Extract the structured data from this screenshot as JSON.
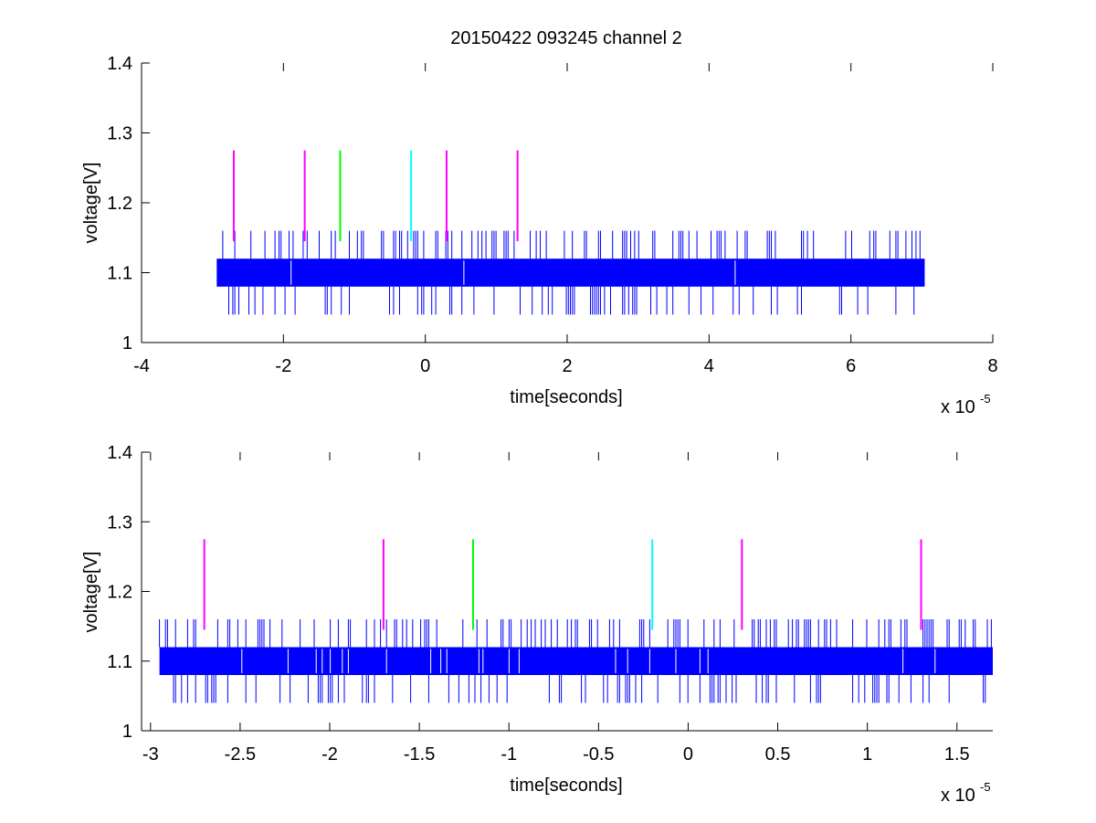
{
  "figure": {
    "background": "#ffffff",
    "signal_color": "#0000ff",
    "marker_colors": {
      "magenta": "#ff00ff",
      "green": "#00ff00",
      "cyan": "#00ffff"
    }
  },
  "chart_data": [
    {
      "type": "line",
      "title": "20150422 093245 channel 2",
      "xlabel": "time[seconds]",
      "ylabel": "voltage[V]",
      "x_exponent_label": "x 10",
      "x_exponent_power": "-5",
      "xlim": [
        -4,
        8
      ],
      "ylim": [
        1,
        1.4
      ],
      "x_ticks": [
        -4,
        -2,
        0,
        2,
        4,
        6,
        8
      ],
      "x_tick_labels": [
        "-4",
        "-2",
        "0",
        "2",
        "4",
        "6",
        "8"
      ],
      "y_ticks": [
        1,
        1.1,
        1.2,
        1.3,
        1.4
      ],
      "y_tick_labels": [
        "1",
        "1.1",
        "1.2",
        "1.3",
        "1.4"
      ],
      "grid": false,
      "signal": {
        "x_range": [
          -2.94,
          7.04
        ],
        "band": [
          1.08,
          1.12
        ],
        "spike_levels": [
          1.04,
          1.16
        ],
        "color": "#0000ff"
      },
      "markers": [
        {
          "x": -2.7,
          "ymin": 1.145,
          "ymax": 1.275,
          "color": "magenta"
        },
        {
          "x": -1.7,
          "ymin": 1.145,
          "ymax": 1.275,
          "color": "magenta"
        },
        {
          "x": -1.2,
          "ymin": 1.145,
          "ymax": 1.275,
          "color": "green"
        },
        {
          "x": -0.2,
          "ymin": 1.145,
          "ymax": 1.275,
          "color": "cyan"
        },
        {
          "x": 0.3,
          "ymin": 1.145,
          "ymax": 1.275,
          "color": "magenta"
        },
        {
          "x": 1.3,
          "ymin": 1.145,
          "ymax": 1.275,
          "color": "magenta"
        }
      ]
    },
    {
      "type": "line",
      "title": "",
      "xlabel": "time[seconds]",
      "ylabel": "voltage[V]",
      "x_exponent_label": "x 10",
      "x_exponent_power": "-5",
      "xlim": [
        -3.05,
        1.7
      ],
      "ylim": [
        1,
        1.4
      ],
      "x_ticks": [
        -3,
        -2.5,
        -2,
        -1.5,
        -1,
        -0.5,
        0,
        0.5,
        1,
        1.5
      ],
      "x_tick_labels": [
        "-3",
        "-2.5",
        "-2",
        "-1.5",
        "-1",
        "-0.5",
        "0",
        "0.5",
        "1",
        "1.5"
      ],
      "y_ticks": [
        1,
        1.1,
        1.2,
        1.3,
        1.4
      ],
      "y_tick_labels": [
        "1",
        "1.1",
        "1.2",
        "1.3",
        "1.4"
      ],
      "grid": false,
      "signal": {
        "x_range": [
          -2.95,
          1.7
        ],
        "band": [
          1.08,
          1.12
        ],
        "spike_levels": [
          1.04,
          1.16
        ],
        "color": "#0000ff"
      },
      "markers": [
        {
          "x": -2.7,
          "ymin": 1.145,
          "ymax": 1.275,
          "color": "magenta"
        },
        {
          "x": -1.7,
          "ymin": 1.145,
          "ymax": 1.275,
          "color": "magenta"
        },
        {
          "x": -1.2,
          "ymin": 1.145,
          "ymax": 1.275,
          "color": "green"
        },
        {
          "x": -0.2,
          "ymin": 1.145,
          "ymax": 1.275,
          "color": "cyan"
        },
        {
          "x": 0.3,
          "ymin": 1.145,
          "ymax": 1.275,
          "color": "magenta"
        },
        {
          "x": 1.3,
          "ymin": 1.145,
          "ymax": 1.275,
          "color": "magenta"
        }
      ]
    }
  ]
}
